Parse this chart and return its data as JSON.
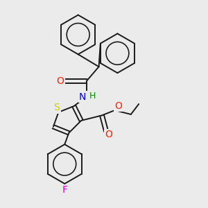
{
  "bg_color": "#ebebeb",
  "figure_size": [
    3.0,
    3.0
  ],
  "dpi": 100,
  "colors": {
    "black": "#1a1a1a",
    "S": "#cccc00",
    "N": "#0000dd",
    "H": "#008800",
    "O": "#ff2200",
    "F": "#dd00dd"
  },
  "bond_lw": 1.4,
  "font_size": 9
}
